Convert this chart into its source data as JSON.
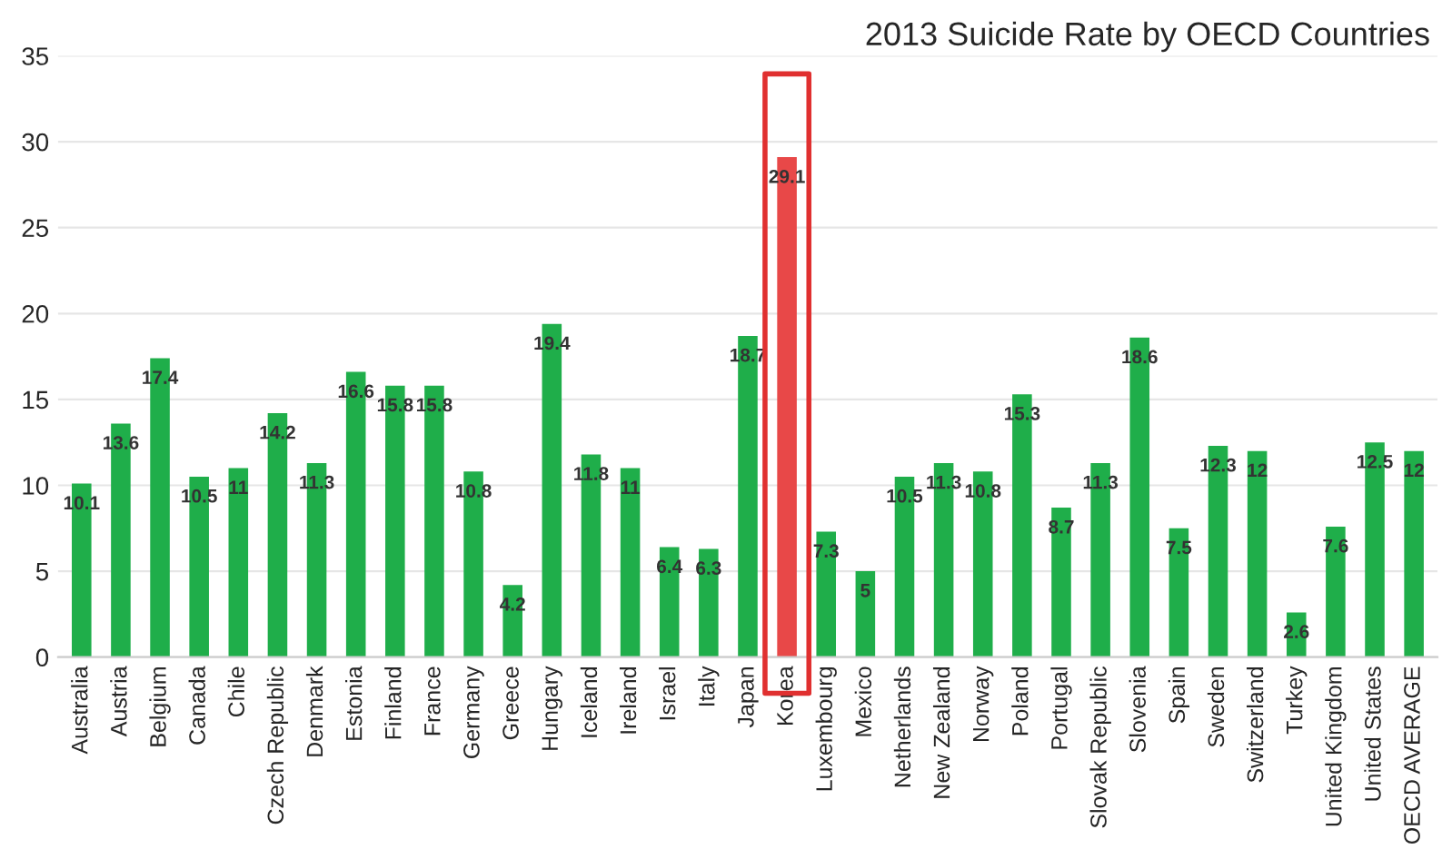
{
  "chart_data": {
    "type": "bar",
    "title": "2013 Suicide Rate by OECD Countries",
    "categories": [
      "Australia",
      "Austria",
      "Belgium",
      "Canada",
      "Chile",
      "Czech Republic",
      "Denmark",
      "Estonia",
      "Finland",
      "France",
      "Germany",
      "Greece",
      "Hungary",
      "Iceland",
      "Ireland",
      "Israel",
      "Italy",
      "Japan",
      "Korea",
      "Luxembourg",
      "Mexico",
      "Netherlands",
      "New Zealand",
      "Norway",
      "Poland",
      "Portugal",
      "Slovak Republic",
      "Slovenia",
      "Spain",
      "Sweden",
      "Switzerland",
      "Turkey",
      "United Kingdom",
      "United States",
      "OECD AVERAGE"
    ],
    "values": [
      10.1,
      13.6,
      17.4,
      10.5,
      11,
      14.2,
      11.3,
      16.6,
      15.8,
      15.8,
      10.8,
      4.2,
      19.4,
      11.8,
      11,
      6.4,
      6.3,
      18.7,
      29.1,
      7.3,
      5,
      10.5,
      11.3,
      10.8,
      15.3,
      8.7,
      11.3,
      18.6,
      7.5,
      12.3,
      12,
      2.6,
      7.6,
      12.5,
      12
    ],
    "colors": [
      "#1fae4a",
      "#1fae4a",
      "#1fae4a",
      "#1fae4a",
      "#1fae4a",
      "#1fae4a",
      "#1fae4a",
      "#1fae4a",
      "#1fae4a",
      "#1fae4a",
      "#1fae4a",
      "#1fae4a",
      "#1fae4a",
      "#1fae4a",
      "#1fae4a",
      "#1fae4a",
      "#1fae4a",
      "#1fae4a",
      "#e84848",
      "#1fae4a",
      "#1fae4a",
      "#1fae4a",
      "#1fae4a",
      "#1fae4a",
      "#1fae4a",
      "#1fae4a",
      "#1fae4a",
      "#1fae4a",
      "#1fae4a",
      "#1fae4a",
      "#1fae4a",
      "#1fae4a",
      "#1fae4a",
      "#1fae4a",
      "#1fae4a"
    ],
    "ylim": [
      0,
      35
    ],
    "yticks": [
      0,
      5,
      10,
      15,
      20,
      25,
      30,
      35
    ],
    "grid": "y",
    "data_labels": true
  }
}
